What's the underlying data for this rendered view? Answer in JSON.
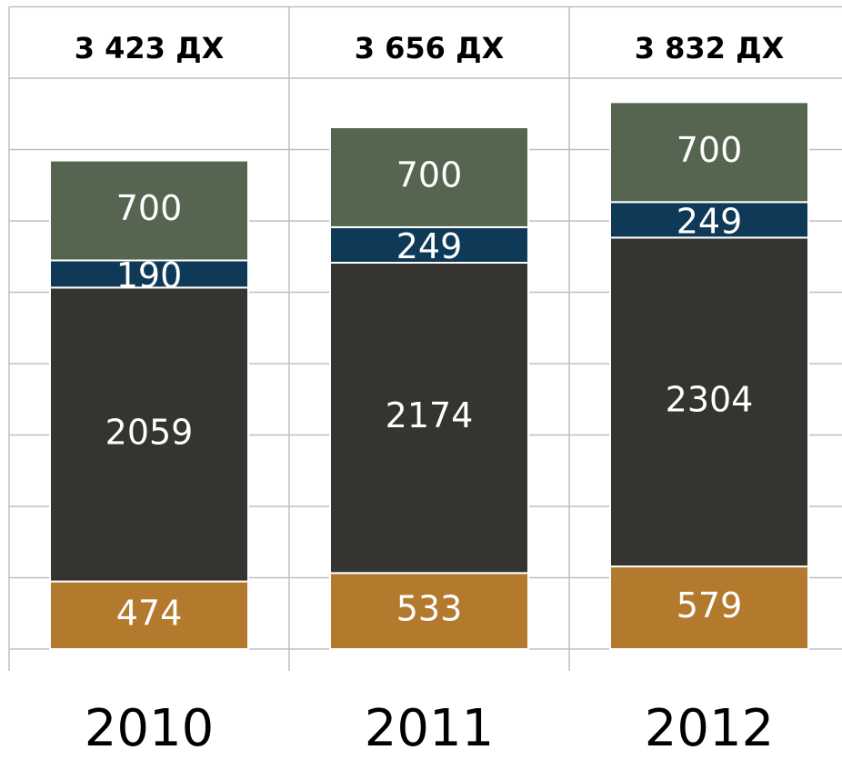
{
  "chart_data": {
    "type": "stacked_bar",
    "categories": [
      "2010",
      "2011",
      "2012"
    ],
    "header_labels": [
      "3 423 ДХ",
      "3 656 ДХ",
      "3 832 ДХ"
    ],
    "series": [
      {
        "color": "#b37a2e",
        "values": [
          474,
          533,
          579
        ]
      },
      {
        "color": "#363431",
        "values": [
          2059,
          2174,
          2304
        ]
      },
      {
        "color": "#0e3a57",
        "values": [
          190,
          249,
          249
        ]
      },
      {
        "color": "#55654f",
        "values": [
          700,
          700,
          700
        ]
      }
    ],
    "ylim": [
      0,
      4500
    ],
    "yticks": [
      0,
      500,
      1000,
      1500,
      2000,
      2500,
      3000,
      3500,
      4000,
      4500
    ],
    "grid": true
  }
}
